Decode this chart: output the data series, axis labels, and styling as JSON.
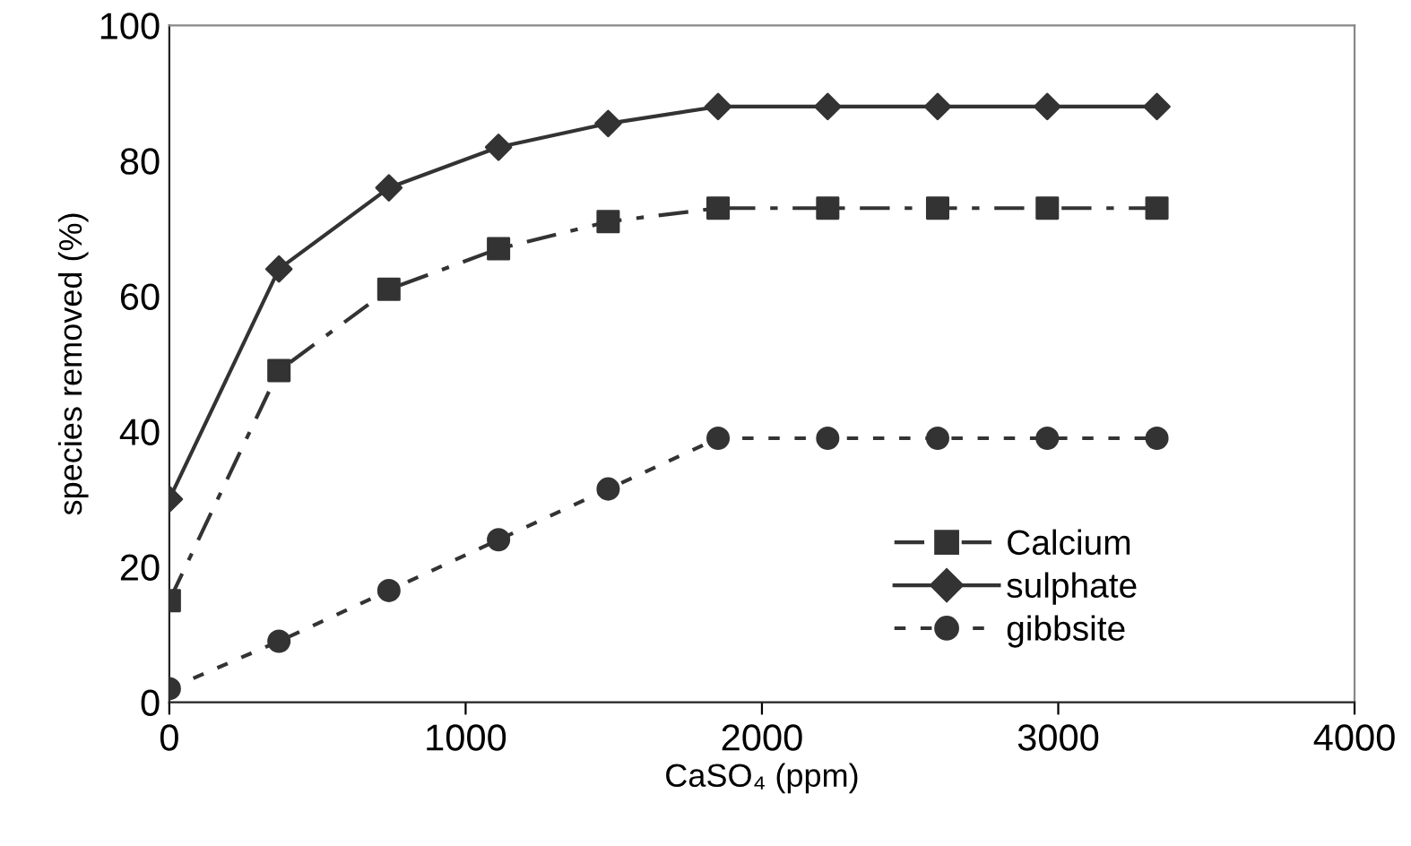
{
  "chart_data": {
    "type": "line",
    "xlabel": "CaSO₄ (ppm)",
    "ylabel": "species removed (%)",
    "x": [
      0,
      370,
      741,
      1111,
      1481,
      1852,
      2222,
      2593,
      2963,
      3333
    ],
    "series": [
      {
        "name": "Calcium",
        "color": "#333333",
        "marker": "square",
        "line_style": "dashed",
        "values": [
          15,
          49,
          61,
          67,
          71,
          73,
          73,
          73,
          73,
          73
        ]
      },
      {
        "name": "sulphate",
        "color": "#333333",
        "marker": "diamond",
        "line_style": "solid",
        "values": [
          30,
          64,
          76,
          82,
          85.5,
          88,
          88,
          88,
          88,
          88
        ]
      },
      {
        "name": "gibbsite",
        "color": "#333333",
        "marker": "circle",
        "line_style": "dotted",
        "values": [
          2,
          9,
          16.5,
          24,
          31.5,
          39,
          39,
          39,
          39,
          39
        ]
      }
    ],
    "xlim": [
      0,
      4000
    ],
    "ylim": [
      0,
      100
    ],
    "xticks": [
      0,
      1000,
      2000,
      3000,
      4000
    ],
    "yticks": [
      0,
      20,
      40,
      60,
      80,
      100
    ],
    "grid": false,
    "legend": "bottom right"
  }
}
